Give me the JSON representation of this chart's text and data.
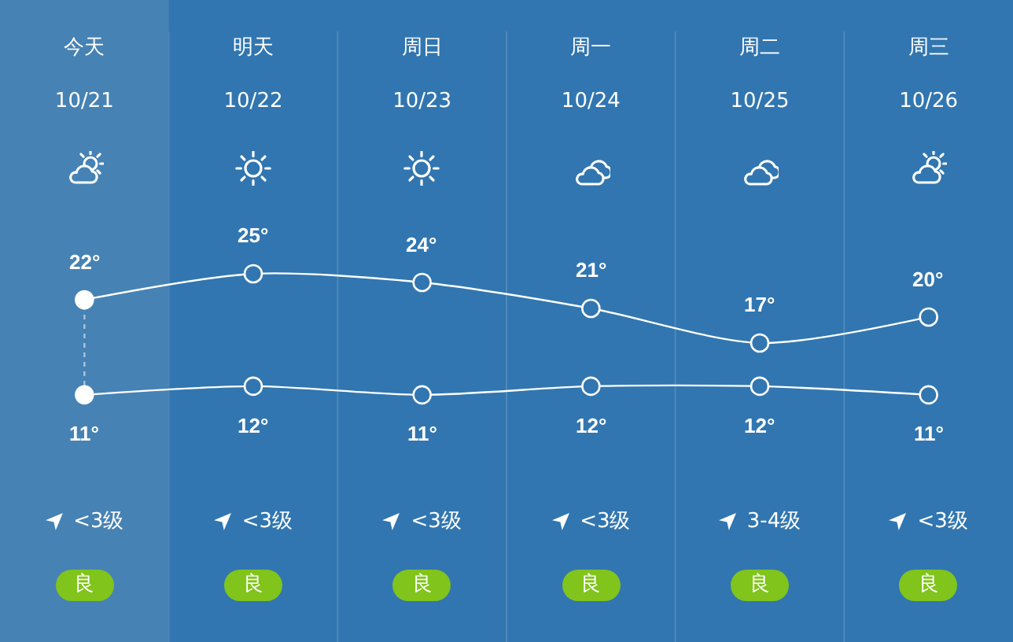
{
  "chart_data": {
    "type": "line",
    "categories": [
      "今天\n10/21",
      "明天\n10/22",
      "周日\n10/23",
      "周一\n10/24",
      "周二\n10/25",
      "周三\n10/26"
    ],
    "series": [
      {
        "color": "#ffffff",
        "colors": [
          "#ffffff",
          "#3176b0",
          "#3176b0",
          "#3176b0",
          "#3176b0",
          "#3176b0"
        ],
        "values": [
          22,
          25,
          24,
          21,
          17,
          20
        ],
        "value_labels": [
          "22°",
          "25°",
          "24°",
          "21°",
          "17°",
          "20°"
        ]
      },
      {
        "color": "#ffffff",
        "colors": [
          "#ffffff",
          "#3176b0",
          "#3176b0",
          "#3176b0",
          "#3176b0",
          "#3176b0"
        ],
        "values": [
          11,
          12,
          11,
          12,
          12,
          11
        ],
        "value_labels": [
          "11°",
          "12°",
          "11°",
          "12°",
          "12°",
          "11°"
        ]
      }
    ],
    "marker": "circle",
    "line_style": "solid",
    "grid": "x",
    "bands": [
      {
        "axis": "x",
        "from": "今天\n10/21",
        "to": "今天\n10/21",
        "color": "#4682b4"
      }
    ],
    "ref_lines": [
      {
        "axis": "x",
        "value": "今天\n10/21",
        "color": "#aac4dc",
        "line_style": "dotted"
      }
    ],
    "annotations": [
      "<3级",
      "<3级",
      "<3级",
      "<3级",
      "3-4级",
      "<3级",
      "良",
      "良",
      "良",
      "良",
      "良",
      "良"
    ]
  }
}
